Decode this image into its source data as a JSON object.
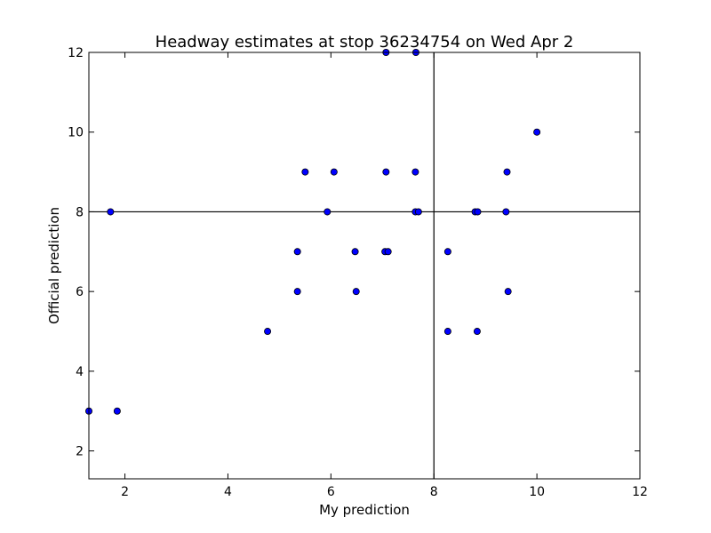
{
  "chart_data": {
    "type": "scatter",
    "title": "Headway estimates at stop 36234754 on Wed Apr 2",
    "xlabel": "My prediction",
    "ylabel": "Official prediction",
    "xlim": [
      1.3,
      12
    ],
    "ylim": [
      1.3,
      12
    ],
    "xticks": [
      2,
      4,
      6,
      8,
      10,
      12
    ],
    "yticks": [
      2,
      4,
      6,
      8,
      10,
      12
    ],
    "grid": false,
    "legend": "none",
    "marker_color": "#0000ff",
    "reference_lines": {
      "x": 8,
      "y": 8
    },
    "points": [
      {
        "x": 1.3,
        "y": 3
      },
      {
        "x": 1.85,
        "y": 3
      },
      {
        "x": 1.72,
        "y": 8
      },
      {
        "x": 4.77,
        "y": 5
      },
      {
        "x": 5.35,
        "y": 6
      },
      {
        "x": 5.35,
        "y": 7
      },
      {
        "x": 5.5,
        "y": 9
      },
      {
        "x": 5.93,
        "y": 8
      },
      {
        "x": 6.06,
        "y": 9
      },
      {
        "x": 6.47,
        "y": 7
      },
      {
        "x": 6.49,
        "y": 6
      },
      {
        "x": 7.05,
        "y": 7
      },
      {
        "x": 7.11,
        "y": 7
      },
      {
        "x": 7.07,
        "y": 9
      },
      {
        "x": 7.07,
        "y": 12
      },
      {
        "x": 7.65,
        "y": 12
      },
      {
        "x": 7.64,
        "y": 9
      },
      {
        "x": 7.64,
        "y": 8
      },
      {
        "x": 7.7,
        "y": 8
      },
      {
        "x": 8.27,
        "y": 7
      },
      {
        "x": 8.27,
        "y": 5
      },
      {
        "x": 8.8,
        "y": 8
      },
      {
        "x": 8.85,
        "y": 8
      },
      {
        "x": 8.84,
        "y": 5
      },
      {
        "x": 9.4,
        "y": 8
      },
      {
        "x": 9.42,
        "y": 9
      },
      {
        "x": 9.44,
        "y": 6
      },
      {
        "x": 10.0,
        "y": 10
      }
    ]
  }
}
